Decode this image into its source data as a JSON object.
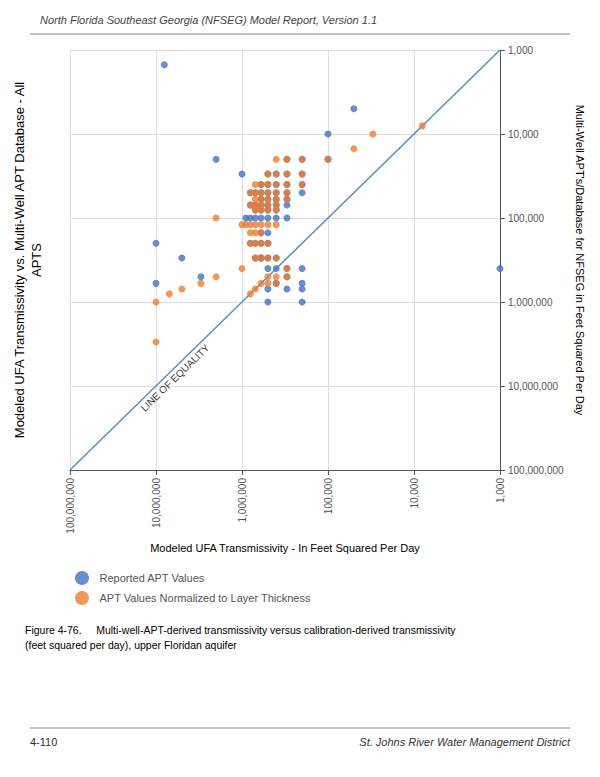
{
  "chart_data": {
    "type": "scatter",
    "title": "Modeled UFA Transmissivity vs. Multi-Well APT Database - All\nAPTS",
    "xlabel": "Modeled UFA Transmissivity - In Feet Squared Per Day",
    "ylabel": "Multi-Well APT's/Database for NFSEG in Feet Squared Per Day",
    "header": "North Florida Southeast Georgia (NFSEG) Model Report, Version 1.1",
    "caption": "Figure 4-76.     Multi-well-APT-derived transmissivity versus calibration-derived transmissivity\n(feet squared per day), upper Floridan aquifer",
    "footer_left": "4-110",
    "footer_right": "St. Johns River Water Management District",
    "log": true,
    "grid": true,
    "legend": "bottom",
    "xlim": [
      100000000,
      1000
    ],
    "ylim": [
      100000000,
      1000
    ],
    "xticks": [
      {
        "value": 100000000,
        "label": "100,000,000"
      },
      {
        "value": 10000000,
        "label": "10,000,000"
      },
      {
        "value": 1000000,
        "label": "1,000,000"
      },
      {
        "value": 100000,
        "label": "100,000"
      },
      {
        "value": 10000,
        "label": "10,000"
      },
      {
        "value": 1000,
        "label": "1,000"
      }
    ],
    "yticks": [
      {
        "value": 100000000,
        "label": "100,000,000"
      },
      {
        "value": 10000000,
        "label": "10,000,000"
      },
      {
        "value": 1000000,
        "label": "1,000,000"
      },
      {
        "value": 100000,
        "label": "100,000"
      },
      {
        "value": 10000,
        "label": "10,000"
      },
      {
        "value": 1000,
        "label": "1,000"
      }
    ],
    "annotations": [
      {
        "text": "LINE OF EQUALITY",
        "x": 6000000,
        "y": 8000000
      }
    ],
    "series": [
      {
        "name": "Reported APT Values",
        "color": "#4472C4",
        "x": [
          10000000,
          5000000,
          200000,
          10000000,
          200000,
          3000000,
          500000,
          500000,
          300000,
          400000,
          300000,
          200000,
          200000,
          300000,
          400000,
          500000,
          600000,
          500000,
          600000,
          700000,
          400000,
          500000,
          600000,
          700000,
          800000,
          500000,
          600000,
          300000,
          400000,
          500000,
          600000,
          700000,
          800000,
          900000,
          400000,
          500000,
          600000,
          700000,
          300000,
          400000,
          500000,
          600000,
          700000,
          800000,
          300000,
          400000,
          500000,
          600000,
          200000,
          300000,
          400000,
          500000,
          600000,
          700000,
          800000,
          200000,
          300000,
          400000,
          500000,
          600000,
          200000,
          300000,
          400000,
          500000,
          100000,
          200000,
          300000,
          1000000,
          100000,
          2000000,
          1000,
          50000,
          8000000
        ],
        "values": [
          200000,
          300000,
          700000,
          600000,
          1000000,
          500000,
          1000000,
          700000,
          700000,
          600000,
          500000,
          600000,
          400000,
          400000,
          400000,
          400000,
          300000,
          300000,
          300000,
          300000,
          300000,
          200000,
          200000,
          200000,
          200000,
          150000,
          150000,
          100000,
          100000,
          100000,
          100000,
          100000,
          100000,
          100000,
          80000,
          80000,
          80000,
          80000,
          70000,
          70000,
          70000,
          70000,
          70000,
          70000,
          60000,
          60000,
          60000,
          60000,
          50000,
          50000,
          50000,
          50000,
          50000,
          50000,
          50000,
          40000,
          40000,
          40000,
          40000,
          40000,
          30000,
          30000,
          30000,
          30000,
          20000,
          20000,
          20000,
          30000,
          10000,
          20000,
          400000,
          5000,
          1500
        ]
      },
      {
        "name": "APT Values Normalized to Layer Thickness",
        "color": "#ED7D31",
        "x": [
          10000000,
          10000000,
          7000000,
          5000000,
          3000000,
          2000000,
          1000000,
          800000,
          700000,
          600000,
          500000,
          500000,
          400000,
          400000,
          300000,
          300000,
          400000,
          500000,
          600000,
          700000,
          500000,
          600000,
          700000,
          800000,
          600000,
          700000,
          800000,
          400000,
          500000,
          600000,
          700000,
          800000,
          900000,
          1000000,
          400000,
          500000,
          600000,
          700000,
          400000,
          500000,
          600000,
          700000,
          800000,
          300000,
          400000,
          500000,
          600000,
          700000,
          300000,
          400000,
          500000,
          600000,
          700000,
          800000,
          200000,
          300000,
          400000,
          500000,
          600000,
          700000,
          200000,
          300000,
          400000,
          500000,
          100000,
          200000,
          300000,
          400000,
          50000,
          30000,
          8000,
          2000000
        ],
        "values": [
          3000000,
          1000000,
          800000,
          700000,
          600000,
          500000,
          400000,
          800000,
          700000,
          600000,
          600000,
          500000,
          600000,
          500000,
          500000,
          400000,
          300000,
          300000,
          300000,
          300000,
          200000,
          200000,
          200000,
          200000,
          150000,
          150000,
          150000,
          120000,
          120000,
          120000,
          120000,
          120000,
          120000,
          120000,
          80000,
          80000,
          80000,
          80000,
          70000,
          70000,
          70000,
          70000,
          70000,
          60000,
          60000,
          60000,
          60000,
          60000,
          50000,
          50000,
          50000,
          50000,
          50000,
          50000,
          40000,
          40000,
          40000,
          40000,
          40000,
          40000,
          30000,
          30000,
          30000,
          30000,
          20000,
          20000,
          20000,
          20000,
          15000,
          10000,
          8000,
          100000
        ]
      },
      {
        "type": "line",
        "color": "#5B8DB8",
        "x": [
          100000000,
          1000
        ],
        "values": [
          100000000,
          1000
        ]
      }
    ]
  }
}
